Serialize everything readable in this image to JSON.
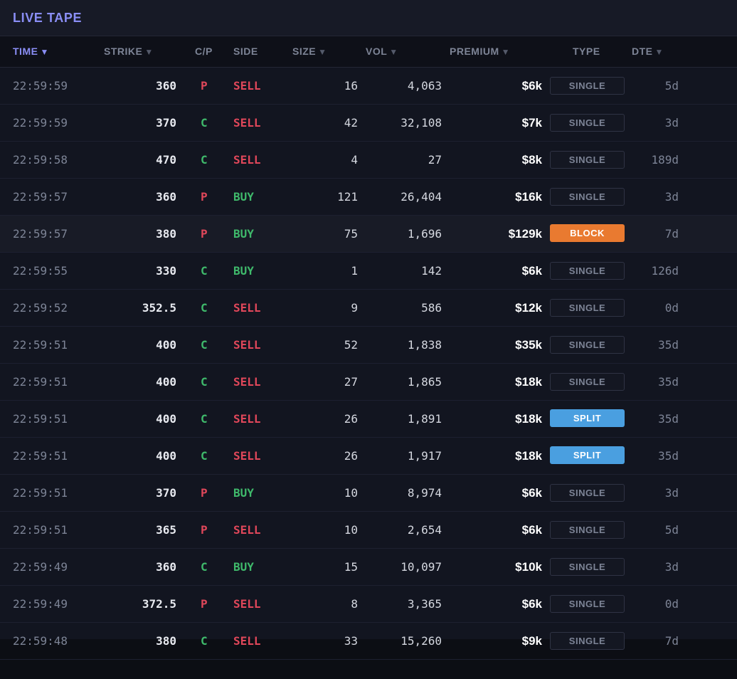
{
  "panel": {
    "title": "LIVE TAPE"
  },
  "columns": [
    {
      "key": "time",
      "label": "TIME",
      "sortable": true,
      "active": true
    },
    {
      "key": "strike",
      "label": "STRIKE",
      "sortable": true,
      "active": false
    },
    {
      "key": "cp",
      "label": "C/P",
      "sortable": false,
      "active": false
    },
    {
      "key": "side",
      "label": "SIDE",
      "sortable": false,
      "active": false
    },
    {
      "key": "size",
      "label": "SIZE",
      "sortable": true,
      "active": false
    },
    {
      "key": "vol",
      "label": "VOL",
      "sortable": true,
      "active": false
    },
    {
      "key": "premium",
      "label": "PREMIUM",
      "sortable": true,
      "active": false
    },
    {
      "key": "type",
      "label": "TYPE",
      "sortable": false,
      "active": false
    },
    {
      "key": "dte",
      "label": "DTE",
      "sortable": true,
      "active": false
    }
  ],
  "sort_icon": "triangle-down-icon",
  "colors": {
    "accent": "#8a8ef5",
    "put": "#e0475a",
    "call": "#3fb96b",
    "sell": "#e0475a",
    "buy": "#3fb96b",
    "block": "#e97a30",
    "split": "#4a9fe0"
  },
  "rows": [
    {
      "time": "22:59:59",
      "strike": "360",
      "cp": "P",
      "side": "SELL",
      "size": "16",
      "vol": "4,063",
      "premium": "$6k",
      "type": "SINGLE",
      "dte": "5d"
    },
    {
      "time": "22:59:59",
      "strike": "370",
      "cp": "C",
      "side": "SELL",
      "size": "42",
      "vol": "32,108",
      "premium": "$7k",
      "type": "SINGLE",
      "dte": "3d"
    },
    {
      "time": "22:59:58",
      "strike": "470",
      "cp": "C",
      "side": "SELL",
      "size": "4",
      "vol": "27",
      "premium": "$8k",
      "type": "SINGLE",
      "dte": "189d"
    },
    {
      "time": "22:59:57",
      "strike": "360",
      "cp": "P",
      "side": "BUY",
      "size": "121",
      "vol": "26,404",
      "premium": "$16k",
      "type": "SINGLE",
      "dte": "3d"
    },
    {
      "time": "22:59:57",
      "strike": "380",
      "cp": "P",
      "side": "BUY",
      "size": "75",
      "vol": "1,696",
      "premium": "$129k",
      "type": "BLOCK",
      "dte": "7d",
      "highlighted": true
    },
    {
      "time": "22:59:55",
      "strike": "330",
      "cp": "C",
      "side": "BUY",
      "size": "1",
      "vol": "142",
      "premium": "$6k",
      "type": "SINGLE",
      "dte": "126d"
    },
    {
      "time": "22:59:52",
      "strike": "352.5",
      "cp": "C",
      "side": "SELL",
      "size": "9",
      "vol": "586",
      "premium": "$12k",
      "type": "SINGLE",
      "dte": "0d"
    },
    {
      "time": "22:59:51",
      "strike": "400",
      "cp": "C",
      "side": "SELL",
      "size": "52",
      "vol": "1,838",
      "premium": "$35k",
      "type": "SINGLE",
      "dte": "35d"
    },
    {
      "time": "22:59:51",
      "strike": "400",
      "cp": "C",
      "side": "SELL",
      "size": "27",
      "vol": "1,865",
      "premium": "$18k",
      "type": "SINGLE",
      "dte": "35d"
    },
    {
      "time": "22:59:51",
      "strike": "400",
      "cp": "C",
      "side": "SELL",
      "size": "26",
      "vol": "1,891",
      "premium": "$18k",
      "type": "SPLIT",
      "dte": "35d"
    },
    {
      "time": "22:59:51",
      "strike": "400",
      "cp": "C",
      "side": "SELL",
      "size": "26",
      "vol": "1,917",
      "premium": "$18k",
      "type": "SPLIT",
      "dte": "35d"
    },
    {
      "time": "22:59:51",
      "strike": "370",
      "cp": "P",
      "side": "BUY",
      "size": "10",
      "vol": "8,974",
      "premium": "$6k",
      "type": "SINGLE",
      "dte": "3d"
    },
    {
      "time": "22:59:51",
      "strike": "365",
      "cp": "P",
      "side": "SELL",
      "size": "10",
      "vol": "2,654",
      "premium": "$6k",
      "type": "SINGLE",
      "dte": "5d"
    },
    {
      "time": "22:59:49",
      "strike": "360",
      "cp": "C",
      "side": "BUY",
      "size": "15",
      "vol": "10,097",
      "premium": "$10k",
      "type": "SINGLE",
      "dte": "3d"
    },
    {
      "time": "22:59:49",
      "strike": "372.5",
      "cp": "P",
      "side": "SELL",
      "size": "8",
      "vol": "3,365",
      "premium": "$6k",
      "type": "SINGLE",
      "dte": "0d"
    },
    {
      "time": "22:59:48",
      "strike": "380",
      "cp": "C",
      "side": "SELL",
      "size": "33",
      "vol": "15,260",
      "premium": "$9k",
      "type": "SINGLE",
      "dte": "7d"
    }
  ]
}
